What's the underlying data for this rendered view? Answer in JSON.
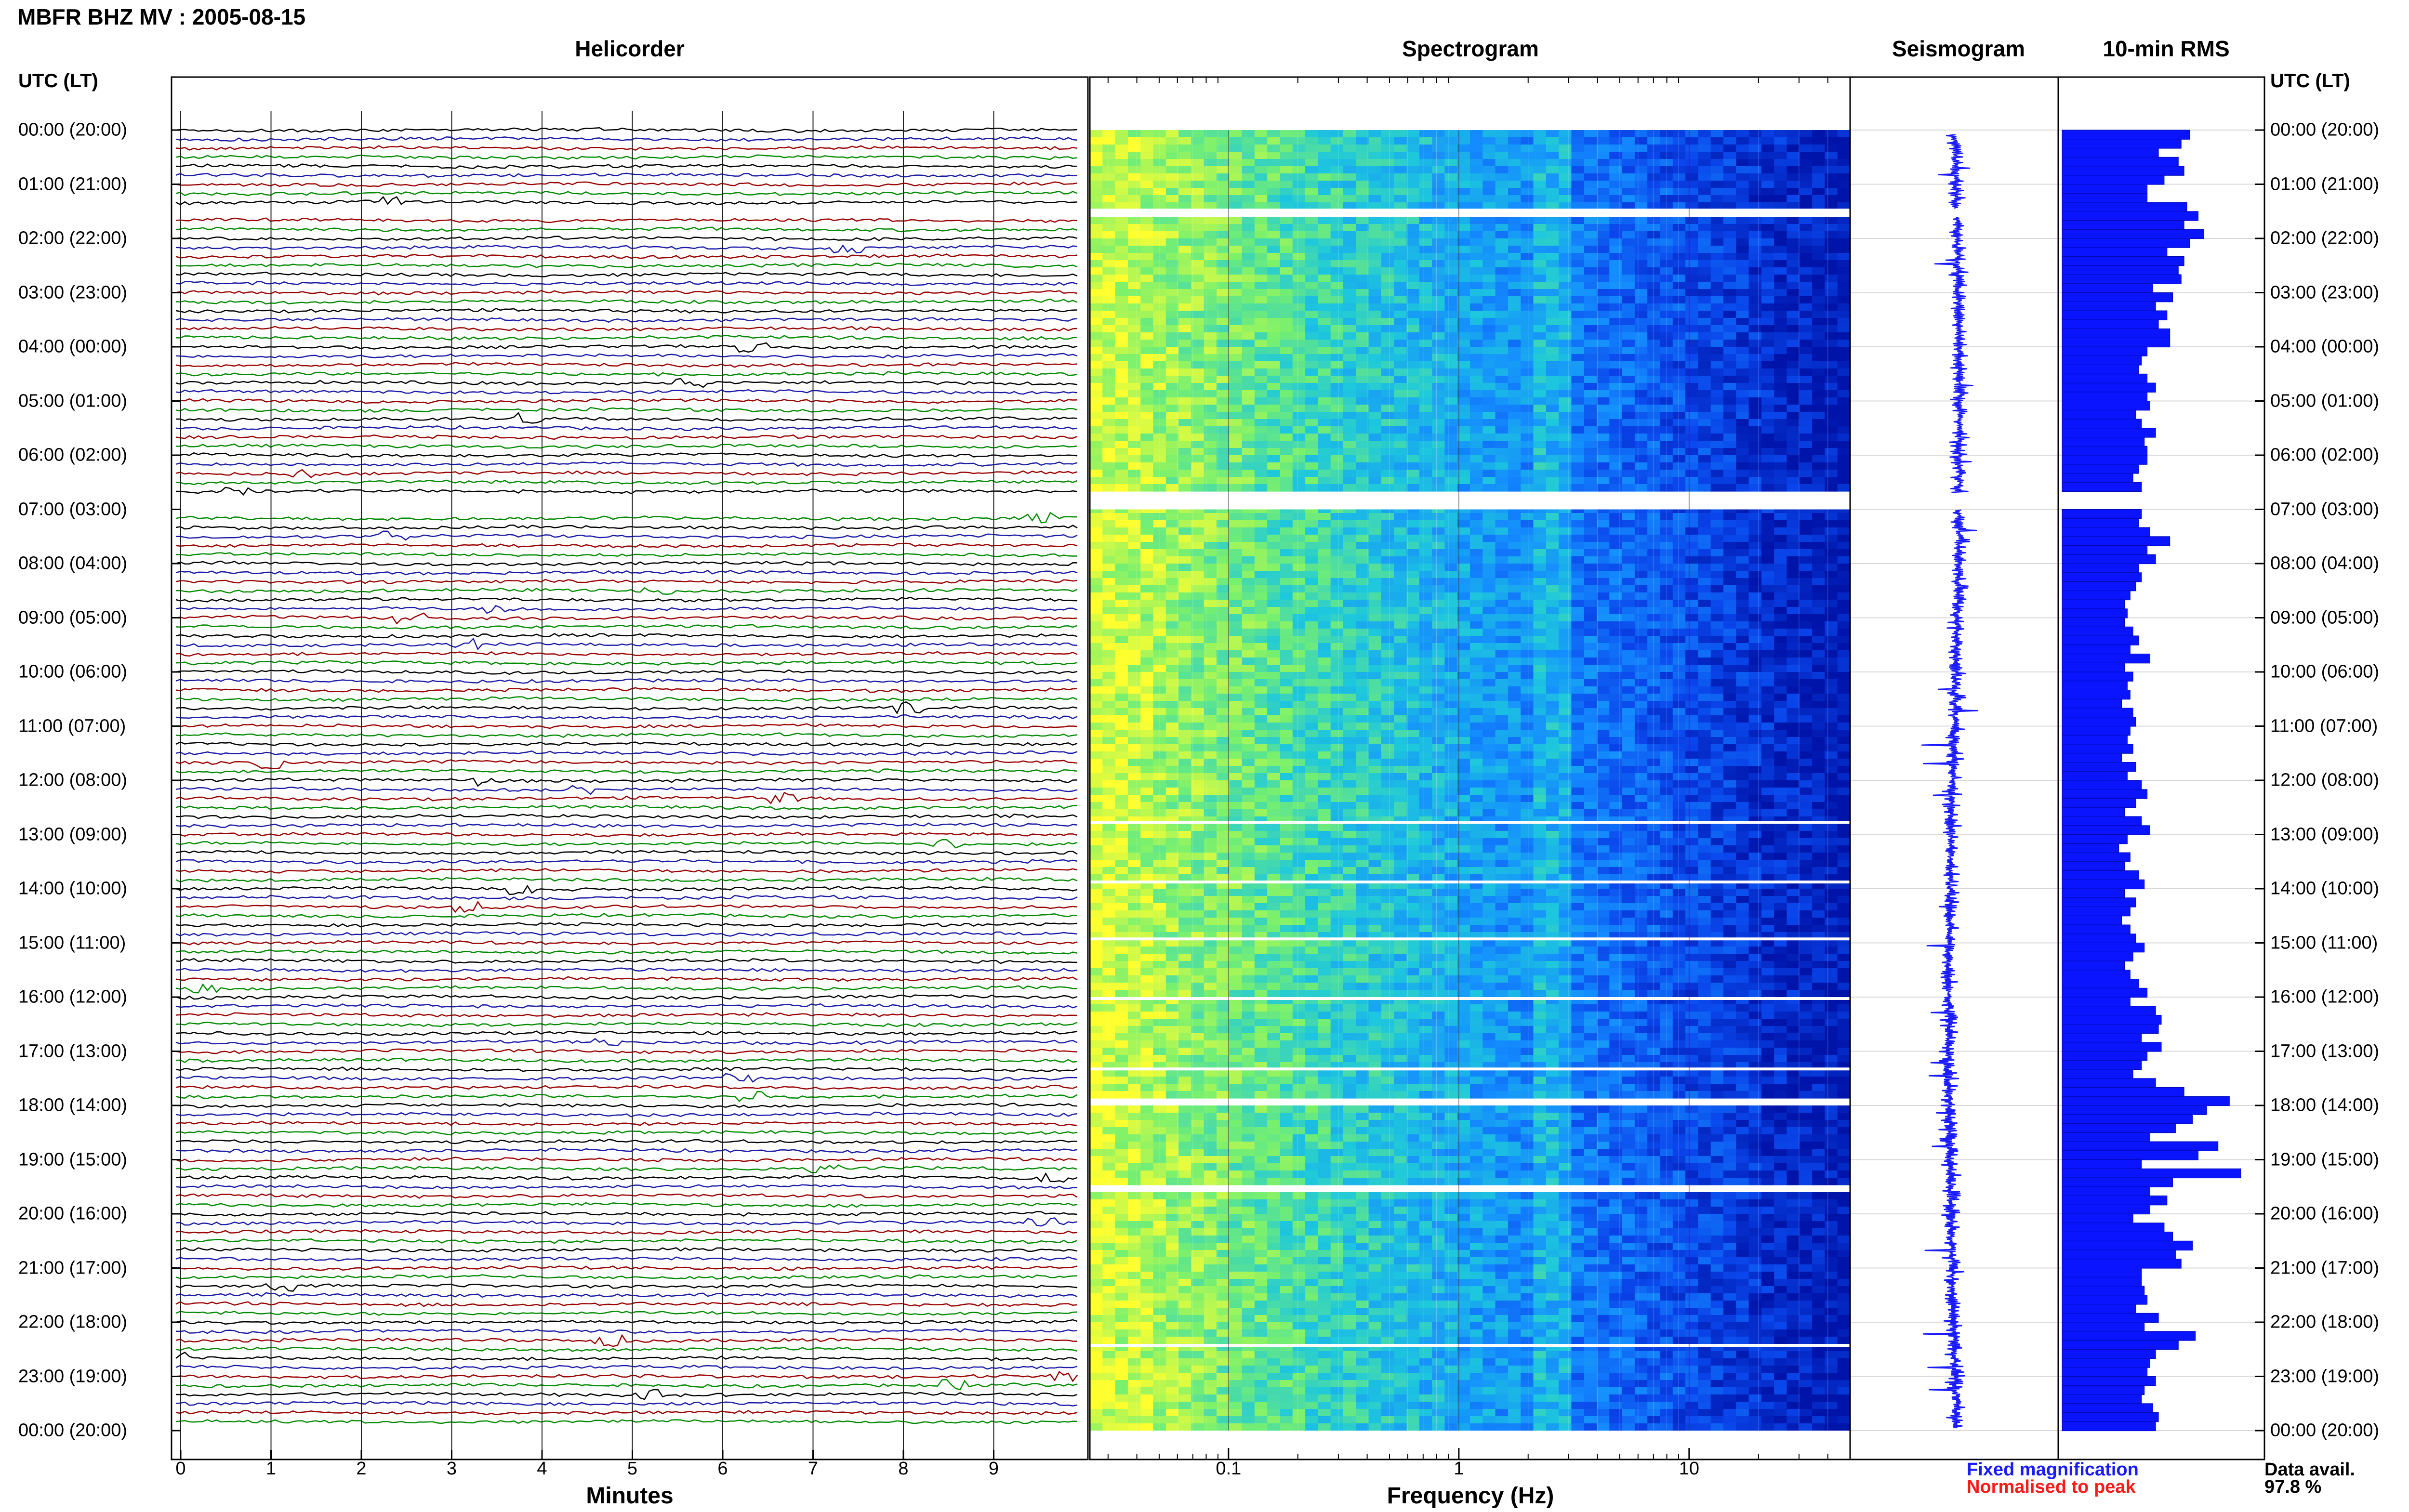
{
  "header": {
    "title": "MBFR BHZ MV : 2005-08-15"
  },
  "panels": {
    "helicorder": "Helicorder",
    "spectrogram": "Spectrogram",
    "seismogram": "Seismogram",
    "rms": "10-min RMS"
  },
  "utc_header_left": "UTC (LT)",
  "utc_header_right": "UTC (LT)",
  "time_labels": [
    "00:00 (20:00)",
    "01:00 (21:00)",
    "02:00 (22:00)",
    "03:00 (23:00)",
    "04:00 (00:00)",
    "05:00 (01:00)",
    "06:00 (02:00)",
    "07:00 (03:00)",
    "08:00 (04:00)",
    "09:00 (05:00)",
    "10:00 (06:00)",
    "11:00 (07:00)",
    "12:00 (08:00)",
    "13:00 (09:00)",
    "14:00 (10:00)",
    "15:00 (11:00)",
    "16:00 (12:00)",
    "17:00 (13:00)",
    "18:00 (14:00)",
    "19:00 (15:00)",
    "20:00 (16:00)",
    "21:00 (17:00)",
    "22:00 (18:00)",
    "23:00 (19:00)",
    "00:00 (20:00)"
  ],
  "helicorder_axis": {
    "xlabel": "Minutes",
    "ticks": [
      "0",
      "1",
      "2",
      "3",
      "4",
      "5",
      "6",
      "7",
      "8",
      "9"
    ]
  },
  "spectrogram_axis": {
    "xlabel": "Frequency (Hz)",
    "ticks": [
      "0.1",
      "1",
      "10"
    ]
  },
  "legend": {
    "fixed": "Fixed magnification",
    "normalised": "Normalised to peak"
  },
  "data_availability": {
    "label": "Data avail.",
    "value": "97.8 %"
  },
  "colors": {
    "trace_black": "#000000",
    "trace_blue": "#1a1aa8",
    "trace_red": "#9a0000",
    "trace_green": "#008a00",
    "seismogram": "#1a1aff",
    "rms_bar": "#0a14ff",
    "legend_blue": "#1a1aff",
    "legend_red": "#ff1a1a"
  },
  "chart_data": [
    {
      "type": "line",
      "title": "Helicorder",
      "xlabel": "Minutes",
      "xlim": [
        0,
        10
      ],
      "rows_per_hour": 6,
      "trace_color_cycle": [
        "black",
        "blue",
        "red",
        "green"
      ],
      "gaps_utc_hours": [
        [
          1.45,
          1.55
        ],
        [
          6.7,
          7.0
        ]
      ]
    },
    {
      "type": "heatmap",
      "title": "Spectrogram",
      "xlabel": "Frequency (Hz)",
      "xscale": "log",
      "xlim": [
        0.025,
        50
      ],
      "colormap": [
        "#ffff30",
        "#40e0a0",
        "#1090ff",
        "#0020c0"
      ],
      "gaps_utc_hours": [
        [
          1.45,
          1.6
        ],
        [
          6.7,
          7.0
        ],
        [
          12.75,
          12.8
        ],
        [
          13.85,
          13.9
        ],
        [
          14.9,
          14.95
        ],
        [
          16.0,
          16.05
        ],
        [
          17.3,
          17.35
        ],
        [
          17.9,
          17.95
        ],
        [
          19.5,
          19.55
        ],
        [
          22.4,
          22.45
        ]
      ]
    },
    {
      "type": "line",
      "title": "Seismogram",
      "normalisation": "fixed magnification",
      "gaps_utc_hours": [
        [
          1.45,
          1.6
        ],
        [
          6.7,
          7.0
        ]
      ]
    },
    {
      "type": "bar",
      "title": "10-min RMS",
      "orientation": "horizontal",
      "x": "10-minute intervals 00:00–24:00 UTC",
      "values": [
        0.45,
        0.42,
        0.34,
        0.41,
        0.43,
        0.36,
        0.3,
        0.3,
        0.44,
        0.48,
        0.43,
        0.5,
        0.45,
        0.37,
        0.43,
        0.41,
        0.42,
        0.32,
        0.39,
        0.33,
        0.37,
        0.34,
        0.38,
        0.38,
        0.3,
        0.28,
        0.27,
        0.3,
        0.33,
        0.3,
        0.31,
        0.26,
        0.28,
        0.33,
        0.29,
        0.3,
        0.3,
        0.27,
        0.25,
        0.28,
        null,
        null,
        0.28,
        0.27,
        0.31,
        0.38,
        0.3,
        0.33,
        0.27,
        0.28,
        0.26,
        0.24,
        0.22,
        0.23,
        0.22,
        0.25,
        0.27,
        0.24,
        0.31,
        0.22,
        0.25,
        0.23,
        0.24,
        0.21,
        0.25,
        0.26,
        0.24,
        0.23,
        0.25,
        0.21,
        0.26,
        0.23,
        0.28,
        0.3,
        0.26,
        0.22,
        0.28,
        0.31,
        0.23,
        0.2,
        0.24,
        0.22,
        0.27,
        0.29,
        0.22,
        0.26,
        0.24,
        0.21,
        0.24,
        0.26,
        0.29,
        0.25,
        0.22,
        0.24,
        0.27,
        0.3,
        0.24,
        0.33,
        0.35,
        0.34,
        0.28,
        0.35,
        0.3,
        0.28,
        0.25,
        0.33,
        0.43,
        0.59,
        0.51,
        0.46,
        0.4,
        0.31,
        0.55,
        0.48,
        0.28,
        0.63,
        0.39,
        0.31,
        0.37,
        0.31,
        0.25,
        0.36,
        0.39,
        0.46,
        0.4,
        0.42,
        0.28,
        0.28,
        0.29,
        0.3,
        0.26,
        0.34,
        0.29,
        0.47,
        0.41,
        0.33,
        0.31,
        0.3,
        0.33,
        0.29,
        0.28,
        0.32,
        0.34,
        0.33
      ],
      "ylim_utc_hours": [
        0,
        24
      ]
    }
  ]
}
